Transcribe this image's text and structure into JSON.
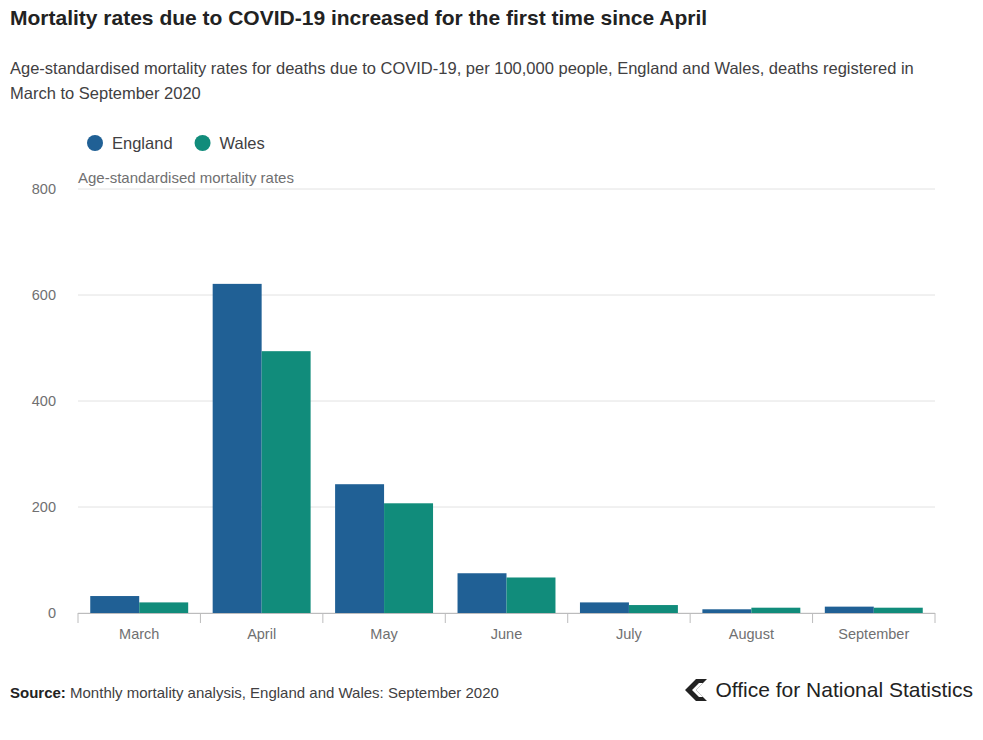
{
  "chart_data": {
    "type": "bar",
    "title": "Mortality rates due to COVID-19 increased for the first time since April",
    "subtitle": "Age-standardised mortality rates for deaths due to COVID-19, per 100,000 people, England and Wales, deaths registered in March to September 2020",
    "y_label": "Age-standardised mortality rates",
    "source_label": "Source:",
    "source": "Monthly mortality analysis, England and Wales: September 2020",
    "publisher": "Office for National Statistics",
    "categories": [
      "March",
      "April",
      "May",
      "June",
      "July",
      "August",
      "September"
    ],
    "series": [
      {
        "name": "England",
        "color": "#206095",
        "values": [
          32,
          621,
          243,
          75,
          20,
          7,
          12
        ]
      },
      {
        "name": "Wales",
        "color": "#118c7b",
        "values": [
          20,
          494,
          207,
          67,
          15,
          10,
          10
        ]
      }
    ],
    "ylim": [
      0,
      800
    ],
    "yticks": [
      0,
      200,
      400,
      600,
      800
    ],
    "grid": true,
    "legend": "top-left"
  }
}
